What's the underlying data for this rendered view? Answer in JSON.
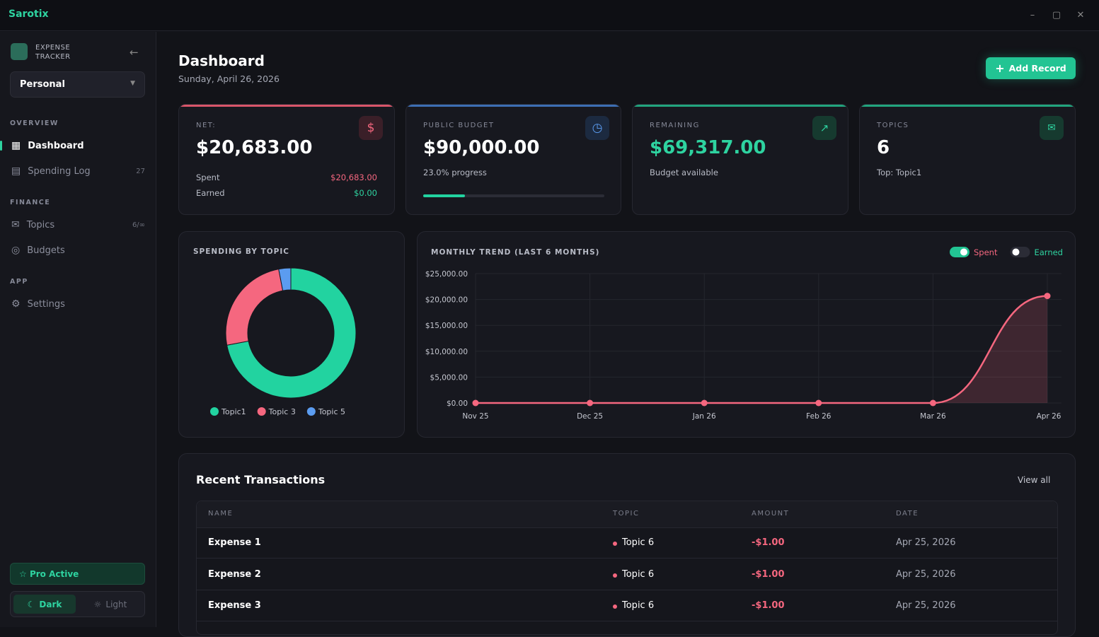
{
  "app": {
    "name": "Sarotix"
  },
  "sidebar": {
    "brand": "EXPENSE TRACKER",
    "workspace": "Personal",
    "sections": [
      {
        "title": "OVERVIEW",
        "items": [
          {
            "label": "Dashboard"
          },
          {
            "label": "Spending Log",
            "badge": "27"
          }
        ]
      },
      {
        "title": "FINANCE",
        "items": [
          {
            "label": "Topics",
            "badge": "6/∞"
          },
          {
            "label": "Budgets"
          }
        ]
      },
      {
        "title": "APP",
        "items": [
          {
            "label": "Settings"
          }
        ]
      }
    ],
    "pro": "Pro Active",
    "theme": {
      "dark": "Dark",
      "light": "Light"
    }
  },
  "header": {
    "title": "Dashboard",
    "date": "Sunday, April 26, 2026",
    "button": "Add Record"
  },
  "cards": [
    {
      "label": "NET:",
      "value": "$20,683.00",
      "details": [
        {
          "label": "Spent",
          "value": "$20,683.00"
        },
        {
          "label": "Earned",
          "value": "$0.00"
        }
      ]
    },
    {
      "label": "PUBLIC BUDGET",
      "value": "$90,000.00",
      "note": "23.0% progress",
      "progress": 23.0
    },
    {
      "label": "REMAINING",
      "value": "$69,317.00",
      "note": "Budget available"
    },
    {
      "label": "TOPICS",
      "value": "6",
      "note": "Top: Topic1"
    }
  ],
  "chart_data": [
    {
      "type": "donut",
      "title": "SPENDING BY TOPIC",
      "categories": [
        "Topic1",
        "Topic 3",
        "Topic 5"
      ],
      "values": [
        72,
        25,
        3
      ],
      "colors": [
        "#22d3a0",
        "#f5677f",
        "#5b9cf0"
      ]
    },
    {
      "type": "line",
      "title": "MONTHLY TREND (LAST 6 MONTHS)",
      "categories": [
        "Nov 25",
        "Dec 25",
        "Jan 26",
        "Feb 26",
        "Mar 26",
        "Apr 26"
      ],
      "series": [
        {
          "name": "Spent",
          "color": "#f5677f",
          "values": [
            0,
            0,
            0,
            0,
            0,
            20683
          ]
        }
      ],
      "inactive_series": [
        {
          "name": "Earned",
          "color": "#2ed3a0"
        }
      ],
      "ylim": [
        0,
        25000
      ],
      "yticks": [
        {
          "value": 0,
          "label": "$0.00"
        },
        {
          "value": 5000,
          "label": "$5,000.00"
        },
        {
          "value": 10000,
          "label": "$10,000.00"
        },
        {
          "value": 15000,
          "label": "$15,000.00"
        },
        {
          "value": 20000,
          "label": "$20,000.00"
        },
        {
          "value": 25000,
          "label": "$25,000.00"
        }
      ],
      "grid": true
    }
  ],
  "transactions": {
    "title": "Recent Transactions",
    "link": "View all",
    "columns": [
      "NAME",
      "TOPIC",
      "AMOUNT",
      "DATE"
    ],
    "rows": [
      [
        "Expense 1",
        "Topic 6",
        "-$1.00",
        "Apr 25, 2026"
      ],
      [
        "Expense 2",
        "Topic 6",
        "-$1.00",
        "Apr 25, 2026"
      ],
      [
        "Expense 3",
        "Topic 6",
        "-$1.00",
        "Apr 25, 2026"
      ]
    ]
  }
}
